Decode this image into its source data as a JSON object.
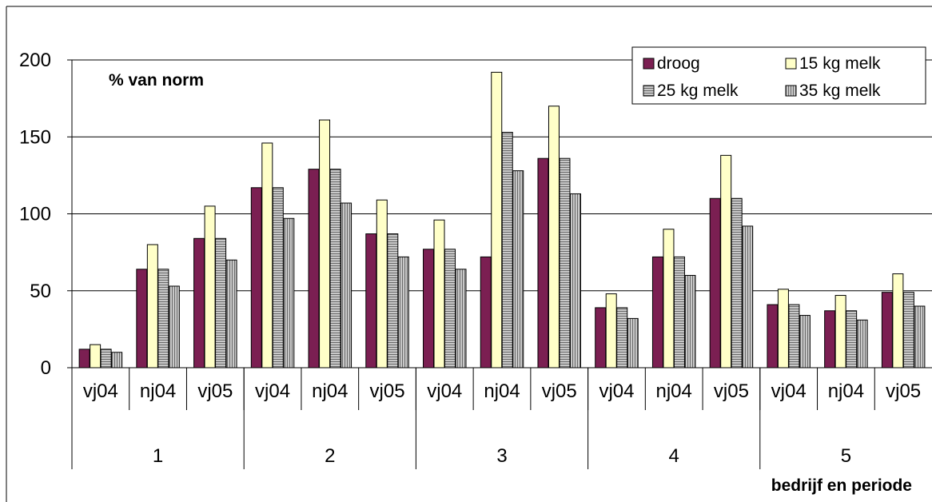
{
  "chart_data": {
    "type": "bar",
    "ylabel": "% van norm",
    "xlabel": "bedrijf en periode",
    "ylim": [
      0,
      200
    ],
    "yticks": [
      0,
      50,
      100,
      150,
      200
    ],
    "grid": true,
    "legend_position": "top-right",
    "categories": [
      "vj04",
      "nj04",
      "vj05",
      "vj04",
      "nj04",
      "vj05",
      "vj04",
      "nj04",
      "vj05",
      "vj04",
      "nj04",
      "vj05",
      "vj04",
      "nj04",
      "vj05"
    ],
    "groups": [
      {
        "label": "1",
        "span": 3
      },
      {
        "label": "2",
        "span": 3
      },
      {
        "label": "3",
        "span": 3
      },
      {
        "label": "4",
        "span": 3
      },
      {
        "label": "5",
        "span": 3
      }
    ],
    "series": [
      {
        "name": "droog",
        "color": "#7b1f52",
        "pattern": "solid",
        "values": [
          12,
          64,
          84,
          117,
          129,
          87,
          77,
          72,
          136,
          39,
          72,
          110,
          41,
          37,
          49
        ]
      },
      {
        "name": "15 kg melk",
        "color": "#ffffc8",
        "pattern": "solid",
        "values": [
          15,
          80,
          105,
          146,
          161,
          109,
          96,
          192,
          170,
          48,
          90,
          138,
          51,
          47,
          61
        ]
      },
      {
        "name": "25 kg melk",
        "color": "#c0c0c0",
        "pattern": "horizontal-lines",
        "values": [
          12,
          64,
          84,
          117,
          129,
          87,
          77,
          153,
          136,
          39,
          72,
          110,
          41,
          37,
          49
        ]
      },
      {
        "name": "35 kg melk",
        "color": "#c0c0c0",
        "pattern": "vertical-lines",
        "values": [
          10,
          53,
          70,
          97,
          107,
          72,
          64,
          128,
          113,
          32,
          60,
          92,
          34,
          31,
          40
        ]
      }
    ]
  }
}
